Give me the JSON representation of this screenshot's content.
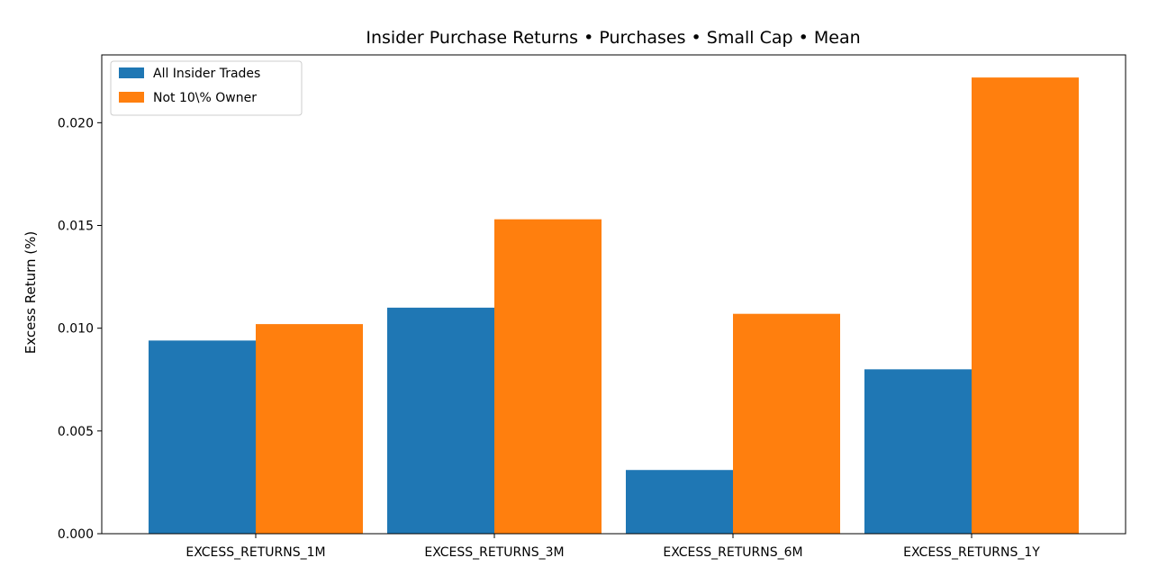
{
  "chart_data": {
    "type": "bar",
    "title": "Insider Purchase Returns • Purchases • Small Cap • Mean",
    "xlabel": "",
    "ylabel": "Excess Return (%)",
    "categories": [
      "EXCESS_RETURNS_1M",
      "EXCESS_RETURNS_3M",
      "EXCESS_RETURNS_6M",
      "EXCESS_RETURNS_1Y"
    ],
    "series": [
      {
        "name": "All Insider Trades",
        "color": "#1f77b4",
        "values": [
          0.0094,
          0.011,
          0.0031,
          0.008
        ]
      },
      {
        "name": "Not 10\\% Owner",
        "color": "#ff7f0e",
        "values": [
          0.0102,
          0.0153,
          0.0107,
          0.0222
        ]
      }
    ],
    "ylim": [
      0,
      0.0233
    ],
    "yticks": [
      "0.000",
      "0.005",
      "0.010",
      "0.015",
      "0.020"
    ],
    "legend_position": "top-left",
    "grid": false
  }
}
